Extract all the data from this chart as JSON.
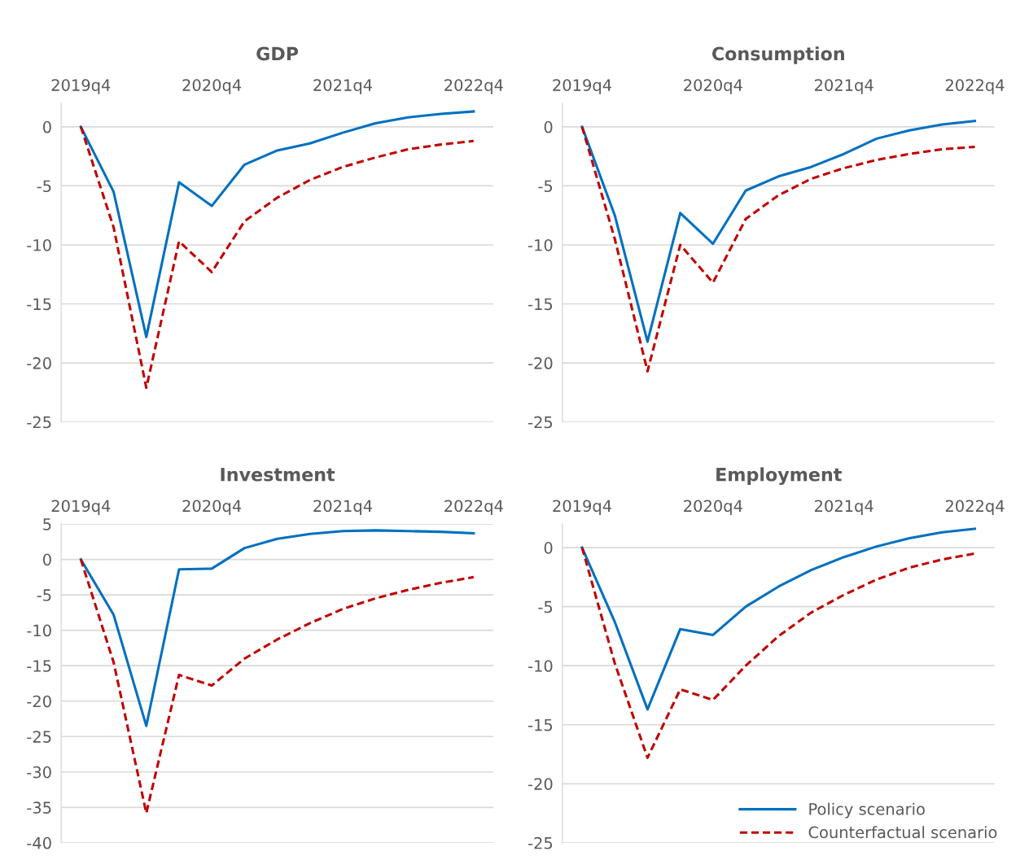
{
  "chart_data": [
    {
      "type": "line",
      "title": "GDP",
      "categories": [
        "2019q4",
        null,
        null,
        null,
        "2020q4",
        null,
        null,
        null,
        "2021q4",
        null,
        null,
        null,
        "2022q4"
      ],
      "ylim": [
        -25,
        2
      ],
      "yticks": [
        -25,
        -20,
        -15,
        -10,
        -5,
        0
      ],
      "grid": "y",
      "legend": false,
      "series": [
        {
          "color": "#0070c0",
          "line_style": "solid",
          "values": [
            0,
            -5.5,
            -17.8,
            -4.7,
            -6.7,
            -3.2,
            -2.0,
            -1.4,
            -0.5,
            0.3,
            0.8,
            1.1,
            1.3
          ]
        },
        {
          "color": "#c00000",
          "line_style": "dashed",
          "values": [
            0,
            -8.5,
            -22.1,
            -9.7,
            -12.3,
            -8.0,
            -6.0,
            -4.5,
            -3.4,
            -2.6,
            -1.9,
            -1.5,
            -1.2
          ]
        }
      ]
    },
    {
      "type": "line",
      "title": "Consumption",
      "categories": [
        "2019q4",
        null,
        null,
        null,
        "2020q4",
        null,
        null,
        null,
        "2021q4",
        null,
        null,
        null,
        "2022q4"
      ],
      "ylim": [
        -25,
        2
      ],
      "yticks": [
        -25,
        -20,
        -15,
        -10,
        -5,
        0
      ],
      "grid": "y",
      "legend": false,
      "series": [
        {
          "color": "#0070c0",
          "line_style": "solid",
          "values": [
            0,
            -7.5,
            -18.2,
            -7.3,
            -9.9,
            -5.4,
            -4.2,
            -3.4,
            -2.3,
            -1.0,
            -0.3,
            0.2,
            0.5
          ]
        },
        {
          "color": "#c00000",
          "line_style": "dashed",
          "values": [
            0,
            -9.5,
            -20.7,
            -10.0,
            -13.2,
            -7.8,
            -5.8,
            -4.4,
            -3.5,
            -2.8,
            -2.3,
            -1.9,
            -1.7
          ]
        }
      ]
    },
    {
      "type": "line",
      "title": "Investment",
      "categories": [
        "2019q4",
        null,
        null,
        null,
        "2020q4",
        null,
        null,
        null,
        "2021q4",
        null,
        null,
        null,
        "2022q4"
      ],
      "ylim": [
        -40,
        5
      ],
      "yticks": [
        -40,
        -35,
        -30,
        -25,
        -20,
        -15,
        -10,
        -5,
        0,
        5
      ],
      "grid": "y",
      "legend": false,
      "series": [
        {
          "color": "#0070c0",
          "line_style": "solid",
          "values": [
            0,
            -7.8,
            -23.5,
            -1.4,
            -1.3,
            1.6,
            2.9,
            3.6,
            4.0,
            4.1,
            4.0,
            3.9,
            3.7
          ]
        },
        {
          "color": "#c00000",
          "line_style": "dashed",
          "values": [
            0,
            -14.5,
            -35.8,
            -16.3,
            -17.8,
            -14.0,
            -11.3,
            -9.0,
            -7.0,
            -5.5,
            -4.3,
            -3.3,
            -2.5
          ]
        }
      ]
    },
    {
      "type": "line",
      "title": "Employment",
      "categories": [
        "2019q4",
        null,
        null,
        null,
        "2020q4",
        null,
        null,
        null,
        "2021q4",
        null,
        null,
        null,
        "2022q4"
      ],
      "ylim": [
        -25,
        2
      ],
      "yticks": [
        -25,
        -20,
        -15,
        -10,
        -5,
        0
      ],
      "grid": "y",
      "legend": "bottom right",
      "series": [
        {
          "name": "Policy scenario",
          "color": "#0070c0",
          "line_style": "solid",
          "values": [
            0,
            -6.3,
            -13.7,
            -6.9,
            -7.4,
            -5.0,
            -3.3,
            -1.9,
            -0.8,
            0.1,
            0.8,
            1.3,
            1.6
          ]
        },
        {
          "name": "Counterfactual scenario",
          "color": "#c00000",
          "line_style": "dashed",
          "values": [
            0,
            -9.8,
            -17.8,
            -12.0,
            -12.9,
            -10.0,
            -7.5,
            -5.5,
            -4.0,
            -2.7,
            -1.7,
            -1.0,
            -0.5
          ]
        }
      ]
    }
  ]
}
